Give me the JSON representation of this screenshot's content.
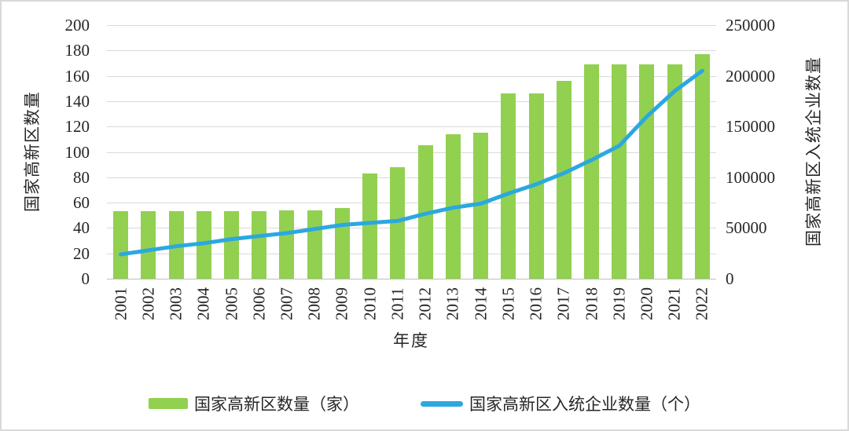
{
  "chart_data": {
    "type": "combo",
    "categories": [
      "2001",
      "2002",
      "2003",
      "2004",
      "2005",
      "2006",
      "2007",
      "2008",
      "2009",
      "2010",
      "2011",
      "2012",
      "2013",
      "2014",
      "2015",
      "2016",
      "2017",
      "2018",
      "2019",
      "2020",
      "2021",
      "2022"
    ],
    "series": [
      {
        "name": "国家高新区数量（家）",
        "type": "bar",
        "axis": "left",
        "color": "#92D050",
        "values": [
          53,
          53,
          53,
          53,
          53,
          53,
          54,
          54,
          56,
          83,
          88,
          105,
          114,
          115,
          146,
          146,
          156,
          169,
          169,
          169,
          169,
          177
        ]
      },
      {
        "name": "国家高新区入统企业数量（个）",
        "type": "line",
        "axis": "right",
        "color": "#2BA8E0",
        "values": [
          24000,
          28000,
          32000,
          35000,
          39000,
          42000,
          45000,
          49000,
          53000,
          55000,
          57000,
          64000,
          70000,
          74000,
          84000,
          93000,
          104000,
          117000,
          131000,
          160000,
          185000,
          205000
        ]
      }
    ],
    "left_axis": {
      "label": "国家高新区数量",
      "min": 0,
      "max": 200,
      "step": 20,
      "ticks": [
        "200",
        "180",
        "160",
        "140",
        "120",
        "100",
        "80",
        "60",
        "40",
        "20",
        "0"
      ]
    },
    "right_axis": {
      "label": "国家高新区入统企业数量",
      "min": 0,
      "max": 250000,
      "step": 50000,
      "ticks": [
        "250000",
        "200000",
        "150000",
        "100000",
        "50000",
        "0"
      ]
    },
    "x_axis": {
      "label": "年度"
    },
    "grid": true,
    "legend_position": "bottom"
  },
  "colors": {
    "bar": "#92D050",
    "line": "#2BA8E0",
    "gridline": "#D9D9D9",
    "axis_line": "#BFBFBF",
    "text": "#262626"
  }
}
